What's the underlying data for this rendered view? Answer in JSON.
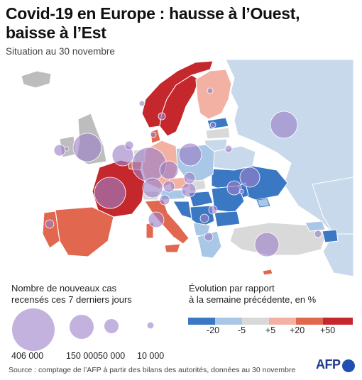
{
  "header": {
    "title": "Covid-19 en Europe : hausse à l’Ouest, baisse à l’Est",
    "subtitle": "Situation au 30 novembre"
  },
  "legend_size": {
    "title_line1": "Nombre de nouveaux cas",
    "title_line2": "recensés ces 7 derniers jours",
    "items": [
      {
        "label": "406 000",
        "value": 406000
      },
      {
        "label": "150 000",
        "value": 150000
      },
      {
        "label": "50 000",
        "value": 50000
      },
      {
        "label": "10 000",
        "value": 10000
      }
    ]
  },
  "legend_color": {
    "title_line1": "Évolution par rapport",
    "title_line2": "à la semaine précédente, en %",
    "ticks": [
      "-20",
      "-5",
      "+5",
      "+20",
      "+50"
    ],
    "classes": [
      {
        "name": "< -20",
        "color": "#3b78c3"
      },
      {
        "name": "-20 à -5",
        "color": "#a9c7e6"
      },
      {
        "name": "-5 à +5",
        "color": "#d9d9d9"
      },
      {
        "name": "+5 à +20",
        "color": "#f2b1a3"
      },
      {
        "name": "+20 à +50",
        "color": "#e2674f"
      },
      {
        "name": "> +50",
        "color": "#c5282c"
      }
    ]
  },
  "map_colors": {
    "sea": "#ffffff",
    "no_data": "#bdbdbd",
    "bubble": "#9b7ec7"
  },
  "source": "Source : comptage de l’AFP à partir des bilans des autorités, données au 30 novembre",
  "logo": "AFP"
}
